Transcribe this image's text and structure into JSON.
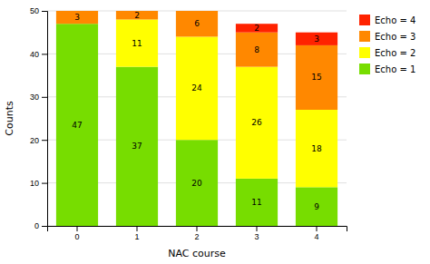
{
  "chart_data": {
    "type": "bar",
    "stacked": true,
    "categories": [
      "0",
      "1",
      "2",
      "3",
      "4"
    ],
    "series": [
      {
        "name": "Echo = 1",
        "color": "#77dd00",
        "values": [
          47,
          37,
          20,
          11,
          9
        ]
      },
      {
        "name": "Echo = 2",
        "color": "#ffff00",
        "values": [
          0,
          11,
          24,
          26,
          18
        ]
      },
      {
        "name": "Echo = 3",
        "color": "#ff8800",
        "values": [
          3,
          2,
          6,
          8,
          15
        ]
      },
      {
        "name": "Echo = 4",
        "color": "#ff2200",
        "values": [
          0,
          0,
          0,
          2,
          3
        ]
      }
    ],
    "xlabel": "NAC course",
    "ylabel": "Counts",
    "ylim": [
      0,
      50
    ],
    "yticks": [
      0,
      10,
      20,
      30,
      40,
      50
    ],
    "grid": true,
    "legend": "right",
    "data_labels": true
  }
}
